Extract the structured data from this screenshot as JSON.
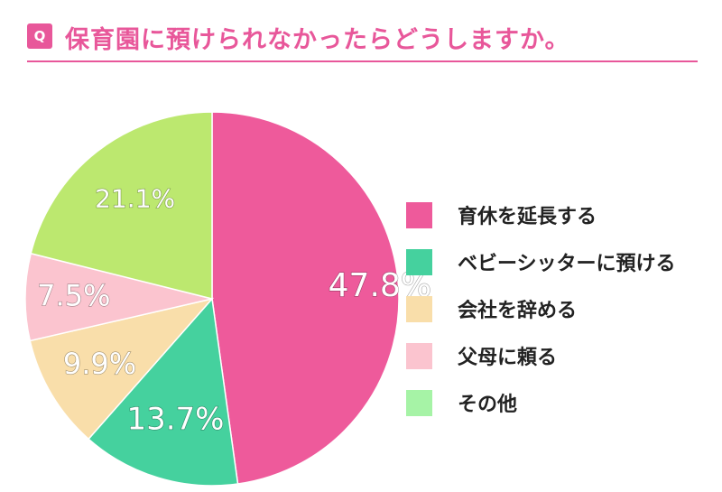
{
  "header": {
    "badge": "Q",
    "title": "保育園に預けられなかったらどうしますか。"
  },
  "colors": {
    "accent": "#e8579a",
    "slices": [
      "#ee5a9b",
      "#45d19e",
      "#f9deaa",
      "#fbc4cf",
      "#bce86f"
    ],
    "legend_swatches": [
      "#ee5a9b",
      "#45d19e",
      "#f9deaa",
      "#fbc4cf",
      "#a6f3a6"
    ]
  },
  "chart_data": {
    "type": "pie",
    "categories": [
      "育休を延長する",
      "ベビーシッターに預ける",
      "会社を辞める",
      "父母に頼る",
      "その他"
    ],
    "values": [
      47.8,
      13.7,
      9.9,
      7.5,
      21.1
    ],
    "value_labels": [
      "47.8%",
      "13.7%",
      "9.9%",
      "7.5%",
      "21.1%"
    ],
    "legend_position": "right"
  }
}
